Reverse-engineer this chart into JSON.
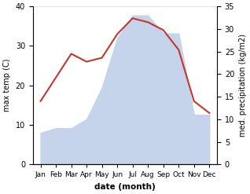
{
  "months": [
    "Jan",
    "Feb",
    "Mar",
    "Apr",
    "May",
    "Jun",
    "Jul",
    "Aug",
    "Sep",
    "Oct",
    "Nov",
    "Dec"
  ],
  "max_temp": [
    16,
    22,
    28,
    26,
    27,
    33,
    37,
    36,
    34,
    29,
    16,
    13
  ],
  "precipitation": [
    7,
    8,
    8,
    10,
    17,
    28,
    33,
    33,
    29,
    29,
    11,
    11
  ],
  "temp_color": "#c0392b",
  "precip_color_fill": "#c5d4ea",
  "ylabel_left": "max temp (C)",
  "ylabel_right": "med. precipitation (kg/m2)",
  "xlabel": "date (month)",
  "ylim_left": [
    0,
    40
  ],
  "ylim_right": [
    0,
    35
  ],
  "bg_color": "#ffffff"
}
